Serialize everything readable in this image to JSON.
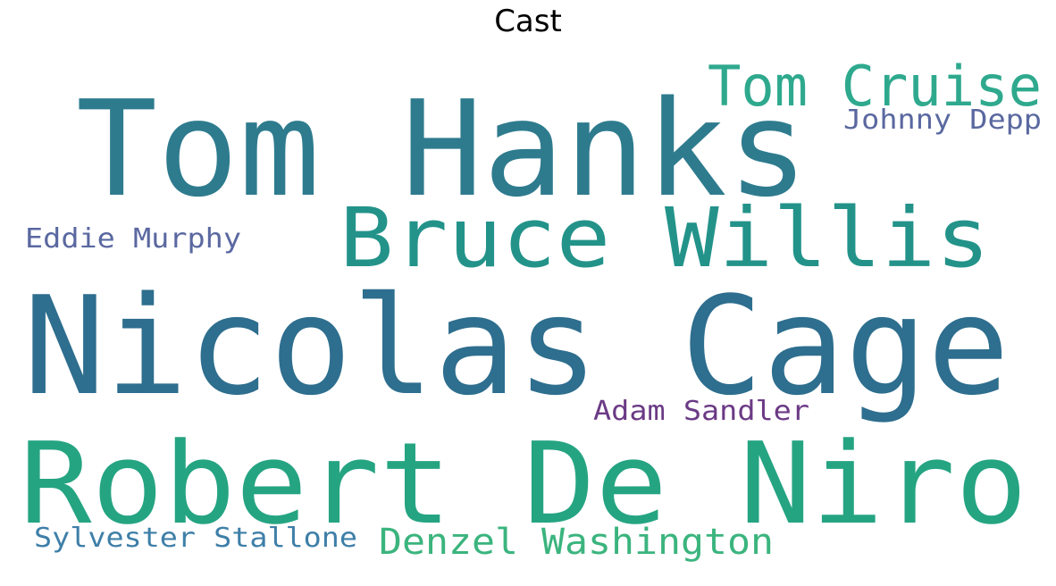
{
  "title": "Cast",
  "chart_data": {
    "type": "wordcloud",
    "title": "Cast",
    "words": [
      {
        "text": "Nicolas Cage",
        "color": "#2e6e8e"
      },
      {
        "text": "Robert De Niro",
        "color": "#25a482"
      },
      {
        "text": "Tom Hanks",
        "color": "#2e7b8e"
      },
      {
        "text": "Bruce Willis",
        "color": "#23938a"
      },
      {
        "text": "Tom Cruise",
        "color": "#2fa98e"
      },
      {
        "text": "Denzel Washington",
        "color": "#3bb47e"
      },
      {
        "text": "Eddie Murphy",
        "color": "#5a68a0"
      },
      {
        "text": "Johnny Depp",
        "color": "#5a68a0"
      },
      {
        "text": "Sylvester Stallone",
        "color": "#3e7fa8"
      },
      {
        "text": "Adam Sandler",
        "color": "#6b3a85"
      }
    ]
  }
}
